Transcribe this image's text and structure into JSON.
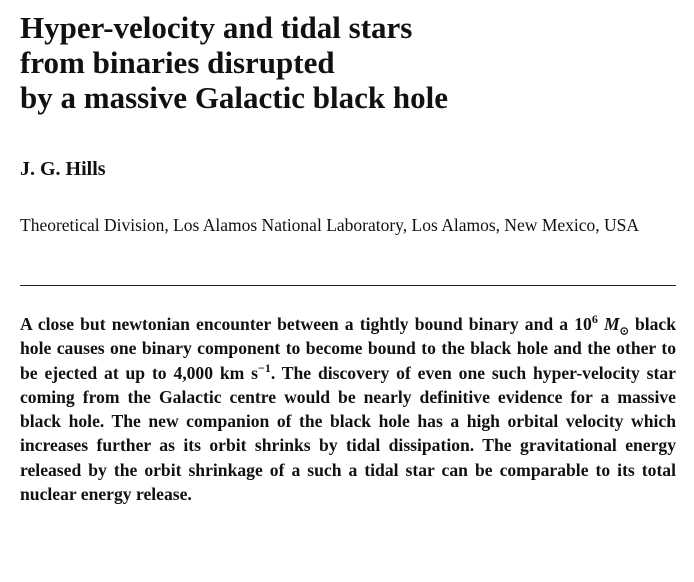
{
  "header": {
    "title_lines": [
      "Hyper-velocity and tidal stars",
      "from binaries disrupted",
      "by a massive Galactic black hole"
    ],
    "author": "J. G. Hills",
    "affiliation": "Theoretical Division, Los Alamos National Laboratory, Los Alamos, New Mexico, USA"
  },
  "abstract": {
    "parts": [
      "A close but newtonian encounter between a tightly bound binary and a 10",
      "6",
      " M",
      "⊙",
      " black hole causes one binary component to become bound to the black hole and the other to be ejected at up to 4,000 km s",
      "−1",
      ". The discovery of even one such hyper-velocity star coming from the Galactic centre would be nearly definitive evidence for a massive black hole. The new companion of the black hole has a high orbital velocity which increases further as its orbit shrinks by tidal dissipation. The gravitational energy released by the orbit shrinkage of a such a tidal star can be comparable to its total nuclear energy release."
    ]
  }
}
